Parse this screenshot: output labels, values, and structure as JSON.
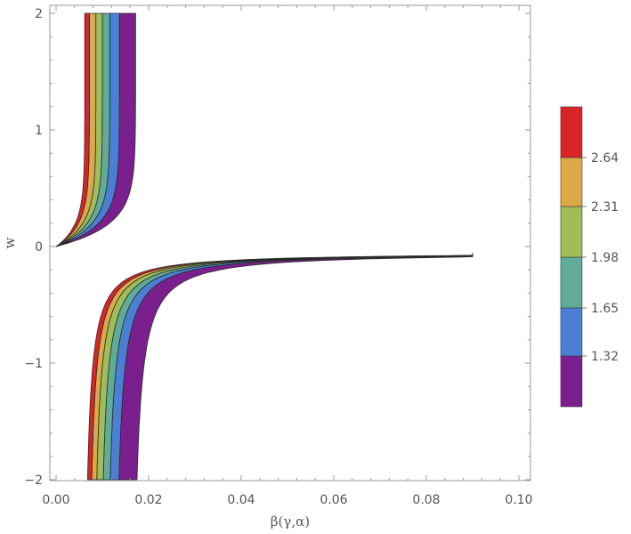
{
  "chart_data": {
    "type": "contour",
    "title": "",
    "xlabel": "β(γ,α)",
    "ylabel": "w",
    "xlim": [
      0,
      0.1
    ],
    "ylim": [
      -2,
      2
    ],
    "x_ticks": [
      {
        "value": 0.0,
        "label": "0.00"
      },
      {
        "value": 0.02,
        "label": "0.02"
      },
      {
        "value": 0.04,
        "label": "0.04"
      },
      {
        "value": 0.06,
        "label": "0.06"
      },
      {
        "value": 0.08,
        "label": "0.08"
      },
      {
        "value": 0.1,
        "label": "0.10"
      }
    ],
    "y_ticks": [
      {
        "value": -2,
        "label": "−2"
      },
      {
        "value": -1,
        "label": "−1"
      },
      {
        "value": 0,
        "label": "0"
      },
      {
        "value": 1,
        "label": "1"
      },
      {
        "value": 2,
        "label": "2"
      }
    ],
    "grid": false,
    "legend_position": "right",
    "legend": {
      "levels": [
        {
          "label": "1.32",
          "value": 1.32
        },
        {
          "label": "1.65",
          "value": 1.65
        },
        {
          "label": "1.98",
          "value": 1.98
        },
        {
          "label": "2.31",
          "value": 2.31
        },
        {
          "label": "2.64",
          "value": 2.64
        }
      ],
      "colors": [
        "#7b1f8f",
        "#4a7fd4",
        "#5fac98",
        "#9fbe5a",
        "#dba947",
        "#d92528"
      ]
    },
    "bands_upper": [
      {
        "color": "#7b1f8f",
        "outer_x_at_top": 0.0172,
        "inner_x_at_top": 0.0137
      },
      {
        "color": "#4a7fd4",
        "outer_x_at_top": 0.0137,
        "inner_x_at_top": 0.0116
      },
      {
        "color": "#5fac98",
        "outer_x_at_top": 0.0116,
        "inner_x_at_top": 0.01
      },
      {
        "color": "#9fbe5a",
        "outer_x_at_top": 0.01,
        "inner_x_at_top": 0.0086
      },
      {
        "color": "#dba947",
        "outer_x_at_top": 0.0086,
        "inner_x_at_top": 0.0072
      },
      {
        "color": "#d92528",
        "outer_x_at_top": 0.0072,
        "inner_x_at_top": 0.0062
      }
    ],
    "bands_lower": [
      {
        "color": "#7b1f8f",
        "outer_x_at_bottom": 0.0175,
        "inner_x_at_bottom": 0.0136
      },
      {
        "color": "#4a7fd4",
        "outer_x_at_bottom": 0.0136,
        "inner_x_at_bottom": 0.0117
      },
      {
        "color": "#5fac98",
        "outer_x_at_bottom": 0.0117,
        "inner_x_at_bottom": 0.0102
      },
      {
        "color": "#9fbe5a",
        "outer_x_at_bottom": 0.0102,
        "inner_x_at_bottom": 0.0088
      },
      {
        "color": "#dba947",
        "outer_x_at_bottom": 0.0088,
        "inner_x_at_bottom": 0.0077
      },
      {
        "color": "#d92528",
        "outer_x_at_bottom": 0.0077,
        "inner_x_at_bottom": 0.0068
      }
    ],
    "asymptote_w": -0.05,
    "curve_end_x": 0.09
  }
}
